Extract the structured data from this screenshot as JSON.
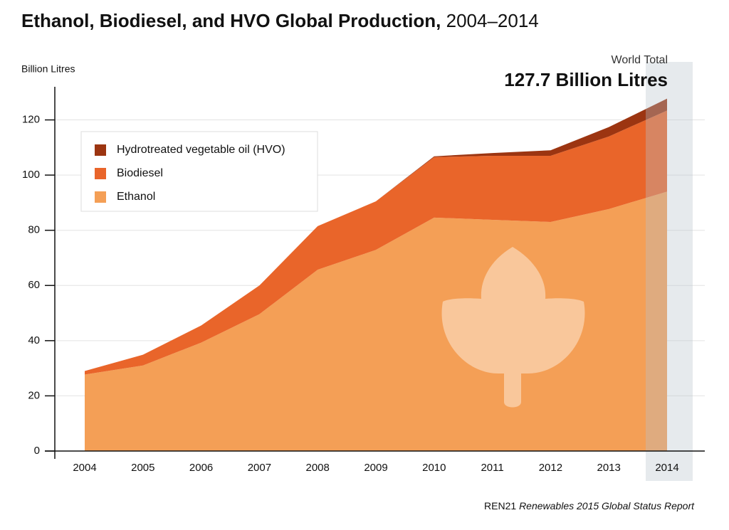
{
  "chart_data": {
    "type": "stacked_area",
    "title": "Ethanol, Biodiesel, and HVO Global Production,",
    "subtitle": "2004–2014",
    "y_axis_label": "Billion Litres",
    "annotation_label": "World Total",
    "annotation_value": "127.7 Billion Litres",
    "source": "REN21",
    "source_title": "Renewables 2015 Global Status Report",
    "categories": [
      "2004",
      "2005",
      "2006",
      "2007",
      "2008",
      "2009",
      "2010",
      "2011",
      "2012",
      "2013",
      "2014"
    ],
    "series": [
      {
        "name": "Ethanol",
        "color": "#f49f56",
        "values": [
          27.7,
          31,
          39.3,
          49.6,
          65.7,
          72.9,
          84.6,
          83.8,
          83,
          87.7,
          94
        ]
      },
      {
        "name": "Biodiesel",
        "color": "#e9652a",
        "values": [
          1.3,
          3.9,
          6.2,
          10.4,
          15.8,
          17.6,
          21.9,
          23.2,
          24,
          26.3,
          29.4
        ]
      },
      {
        "name": "Hydrotreated vegetable oil (HVO)",
        "color": "#9c3511",
        "values": [
          0,
          0,
          0,
          0,
          0,
          0,
          0.3,
          1,
          2,
          3.4,
          4.3
        ]
      }
    ],
    "ylim": [
      0,
      132
    ],
    "yticks": [
      0,
      20,
      40,
      60,
      80,
      100,
      120
    ],
    "grid": true
  }
}
